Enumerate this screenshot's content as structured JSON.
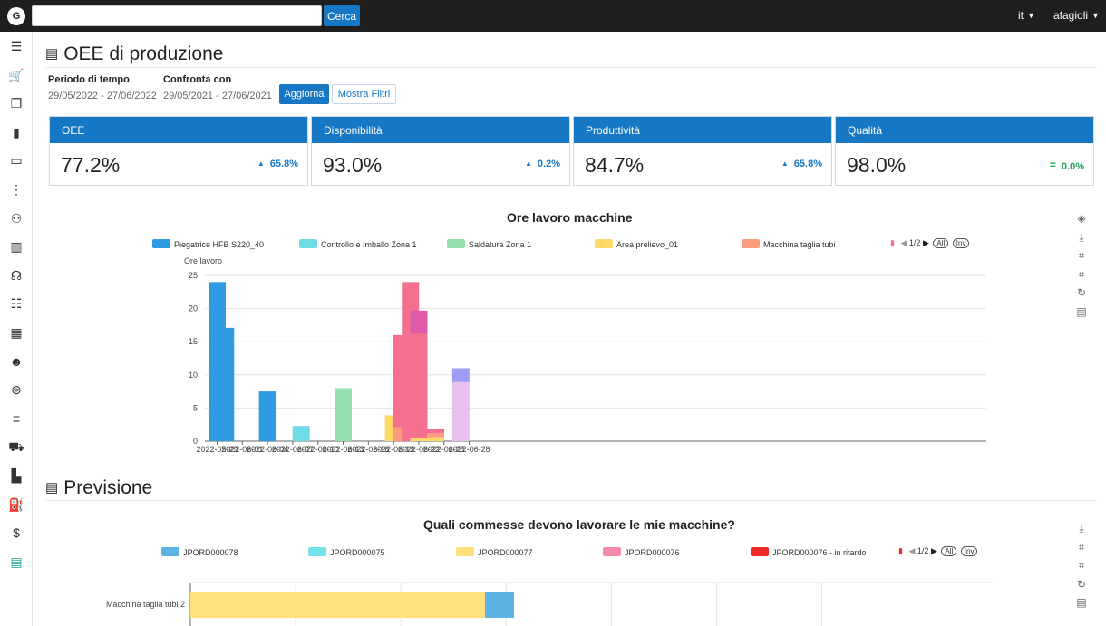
{
  "topbar": {
    "logo": "G",
    "search_placeholder": "",
    "search_button": "Cerca",
    "language": "it",
    "user": "afagioli"
  },
  "sidebar": {
    "items": [
      {
        "name": "menu-icon",
        "glyph": "☰"
      },
      {
        "name": "cart-icon",
        "glyph": "🛒"
      },
      {
        "name": "boxes-icon",
        "glyph": "❐"
      },
      {
        "name": "bookmark-icon",
        "glyph": "▮"
      },
      {
        "name": "folder-icon",
        "glyph": "▭"
      },
      {
        "name": "hierarchy-icon",
        "glyph": "⋮"
      },
      {
        "name": "org-chart-icon",
        "glyph": "⚇"
      },
      {
        "name": "building-icon",
        "glyph": "▥"
      },
      {
        "name": "headset-icon",
        "glyph": "☊"
      },
      {
        "name": "list-icon",
        "glyph": "☷"
      },
      {
        "name": "calendar-icon",
        "glyph": "▦"
      },
      {
        "name": "team-icon",
        "glyph": "☻"
      },
      {
        "name": "coins-icon",
        "glyph": "⊛"
      },
      {
        "name": "list-clock-icon",
        "glyph": "≡"
      },
      {
        "name": "tractor-icon",
        "glyph": "⛟"
      },
      {
        "name": "factory-icon",
        "glyph": "▙"
      },
      {
        "name": "extinguisher-icon",
        "glyph": "⛽"
      },
      {
        "name": "invoice-icon",
        "glyph": "$"
      },
      {
        "name": "report-icon",
        "glyph": "▤"
      }
    ]
  },
  "oee_section": {
    "icon": "▤",
    "title": "OEE di produzione",
    "period_label": "Periodo di tempo",
    "period_value": "29/05/2022 - 27/06/2022",
    "compare_label": "Confronta con",
    "compare_value": "29/05/2021 - 27/06/2021",
    "update_button": "Aggiorna",
    "filters_button": "Mostra Filtri"
  },
  "kpis": [
    {
      "title": "OEE",
      "value": "77.2%",
      "arrow": "▲",
      "delta": "65.8%"
    },
    {
      "title": "Disponibilità",
      "value": "93.0%",
      "arrow": "▲",
      "delta": "0.2%"
    },
    {
      "title": "Produttività",
      "value": "84.7%",
      "arrow": "▲",
      "delta": "65.8%"
    },
    {
      "title": "Qualità",
      "value": "98.0%",
      "arrow": "=",
      "delta": "0.0%"
    }
  ],
  "colors": {
    "accent": "#1677c5",
    "s1": "#2f9be0",
    "s2": "#6fdbe4",
    "s3": "#93e0ae",
    "s4": "#ffd966",
    "s5": "#fb9c7f",
    "s6": "#f5708e",
    "s7": "#dd5ba9",
    "s8": "#9f9cf5",
    "s9": "#e9bfee",
    "p1": "#5cb3e3",
    "p2": "#75e2eb",
    "p3": "#ffdf7e",
    "p4": "#f58aa8",
    "p5": "#ee2a2a"
  },
  "chart_data": [
    {
      "type": "bar",
      "title": "Ore lavoro macchine",
      "ylabel": "Ore lavoro",
      "ylim": [
        0,
        25
      ],
      "yticks": [
        0,
        5,
        10,
        15,
        20,
        25
      ],
      "xticks": [
        "2022-05-29",
        "2022-06-01",
        "2022-06-04",
        "2022-06-07",
        "2022-06-10",
        "2022-06-13",
        "2022-06-16",
        "2022-06-19",
        "2022-06-22",
        "2022-06-25",
        "2022-06-28"
      ],
      "legend": [
        "Piegatrice HFB S220_40",
        "Controllo e Imballo Zona 1",
        "Saldatura Zona 1",
        "Area prelievo_01",
        "Macchina taglia tubi"
      ],
      "legend_page": "1/2",
      "legend_all": "All",
      "legend_inv": "Inv",
      "bars": [
        {
          "day": 0,
          "segments": [
            {
              "series": "Piegatrice HFB S220_40",
              "color": "s1",
              "value": 24
            }
          ]
        },
        {
          "day": 1,
          "segments": [
            {
              "series": "Piegatrice HFB S220_40",
              "color": "s1",
              "value": 17.1
            }
          ]
        },
        {
          "day": 6,
          "segments": [
            {
              "series": "Piegatrice HFB S220_40",
              "color": "s1",
              "value": 7.5
            }
          ]
        },
        {
          "day": 10,
          "segments": [
            {
              "series": "Controllo e Imballo Zona 1",
              "color": "s2",
              "value": 2.3
            }
          ]
        },
        {
          "day": 15,
          "segments": [
            {
              "series": "Saldatura Zona 1",
              "color": "s3",
              "value": 8
            }
          ]
        },
        {
          "day": 21,
          "segments": [
            {
              "series": "Area prelievo_01",
              "color": "s4",
              "value": 3.9
            }
          ]
        },
        {
          "day": 22,
          "segments": [
            {
              "series": "Macchina taglia tubi",
              "color": "s5",
              "value": 2.1
            },
            {
              "series": "page2",
              "color": "s6",
              "value": 13.9
            }
          ]
        },
        {
          "day": 23,
          "segments": [
            {
              "series": "page2",
              "color": "s6",
              "value": 24
            }
          ]
        },
        {
          "day": 24,
          "segments": [
            {
              "series": "Area prelievo_01",
              "color": "s4",
              "value": 0.5
            },
            {
              "series": "page2",
              "color": "s6",
              "value": 15.7
            },
            {
              "series": "page2b",
              "color": "s7",
              "value": 3.5
            }
          ]
        },
        {
          "day": 26,
          "segments": [
            {
              "series": "Area prelievo_01",
              "color": "s4",
              "value": 0.6
            },
            {
              "series": "Macchina taglia tubi",
              "color": "s5",
              "value": 0.6
            },
            {
              "series": "page2",
              "color": "s6",
              "value": 0.6
            }
          ]
        },
        {
          "day": 29,
          "segments": [
            {
              "series": "page2c",
              "color": "s9",
              "value": 8.9
            },
            {
              "series": "page2d",
              "color": "s8",
              "value": 2.1
            }
          ]
        }
      ]
    },
    {
      "type": "bar",
      "orientation": "horizontal",
      "title": "Quali commesse devono lavorare le mie macchine?",
      "legend": [
        "JPORD000078",
        "JPORD000075",
        "JPORD000077",
        "JPORD000076",
        "JPORD000076 - in ritardo"
      ],
      "legend_page": "1/2",
      "legend_all": "All",
      "legend_inv": "Inv",
      "categories": [
        "Macchina taglia tubi 2"
      ],
      "xlim": [
        0,
        100
      ],
      "series": [
        {
          "name": "JPORD000077",
          "color": "p3",
          "values": [
            36.6
          ]
        },
        {
          "name": "JPORD000078",
          "color": "p1",
          "values": [
            3.6
          ]
        }
      ]
    }
  ],
  "forecast_section": {
    "icon": "▤",
    "title": "Previsione"
  }
}
